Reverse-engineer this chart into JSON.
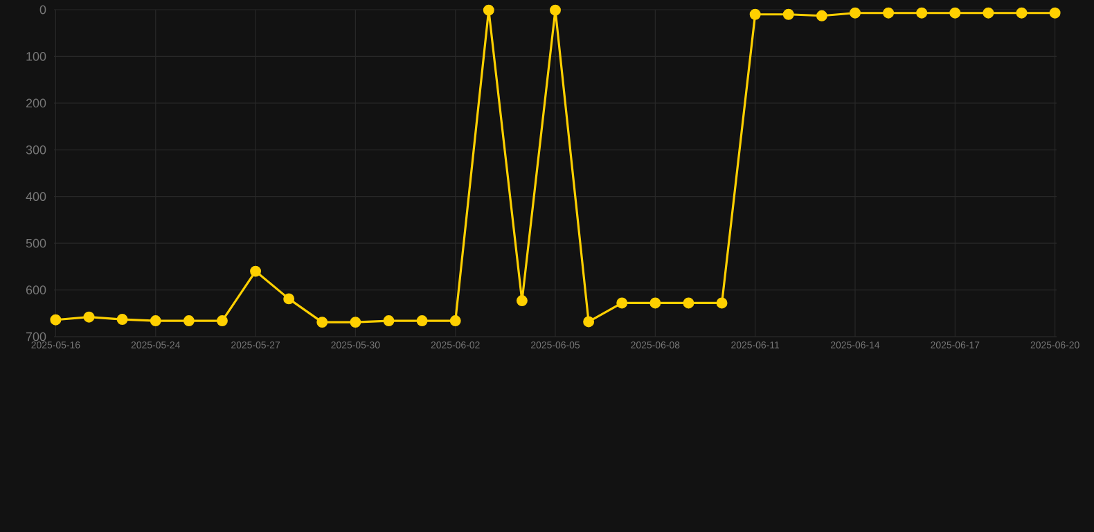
{
  "chart_data": {
    "type": "line",
    "categories": [
      "2025-05-16",
      null,
      null,
      "2025-05-24",
      null,
      null,
      "2025-05-27",
      null,
      null,
      "2025-05-30",
      null,
      null,
      "2025-06-02",
      null,
      null,
      "2025-06-05",
      null,
      null,
      "2025-06-08",
      null,
      null,
      "2025-06-11",
      null,
      null,
      "2025-06-14",
      null,
      null,
      "2025-06-17",
      null,
      null,
      "2025-06-20"
    ],
    "series": [
      {
        "color": "#ffd000",
        "values": [
          664,
          658,
          663,
          666,
          666,
          666,
          560,
          619,
          669,
          669,
          666,
          666,
          666,
          1,
          623,
          1,
          668,
          628,
          628,
          628,
          628,
          10,
          10,
          13,
          7,
          7,
          7,
          7,
          7,
          7,
          7
        ]
      }
    ],
    "ylim": [
      700,
      0
    ],
    "yticks": [
      0,
      100,
      200,
      300,
      400,
      500,
      600,
      700
    ],
    "grid": true,
    "marker": "circle",
    "line_style": "solid"
  }
}
